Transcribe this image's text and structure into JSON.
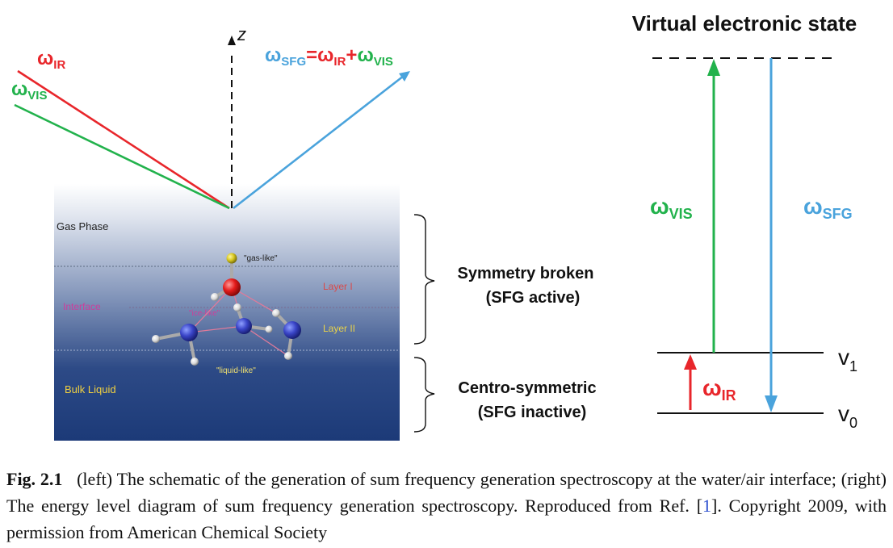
{
  "left_panel": {
    "axis_label": "z",
    "beam_ir": {
      "base": "ω",
      "sub": "IR"
    },
    "beam_vis": {
      "base": "ω",
      "sub": "VIS"
    },
    "beam_sfg": {
      "base": "ω",
      "sub": "SFG",
      "eq1": "=",
      "t1": "ω",
      "t1sub": "IR",
      "plus": "+",
      "t2": "ω",
      "t2sub": "VIS"
    },
    "region_labels": [
      "Gas Phase",
      "Interface",
      "Bulk Liquid"
    ],
    "layer_labels": [
      "Layer I",
      "Layer II"
    ],
    "molecule_labels": [
      "\"gas-like\"",
      "\"ice-like\"",
      "\"liquid-like\""
    ],
    "bracket_top": {
      "line1": "Symmetry broken",
      "line2": "(SFG active)"
    },
    "bracket_bottom": {
      "line1": "Centro-symmetric",
      "line2": "(SFG inactive)"
    }
  },
  "right_panel": {
    "title": "Virtual electronic state",
    "vis": {
      "base": "ω",
      "sub": "VIS"
    },
    "sfg": {
      "base": "ω",
      "sub": "SFG"
    },
    "ir": {
      "base": "ω",
      "sub": "IR"
    },
    "level_v1": {
      "base": "v",
      "sub": "1"
    },
    "level_v0": {
      "base": "v",
      "sub": "0"
    }
  },
  "colors": {
    "ir": "#e8262b",
    "vis": "#22b24c",
    "sfg": "#4aa3dc",
    "water_top": "#e2e7f0",
    "water_bottom": "#1c3a78"
  },
  "caption": {
    "label": "Fig. 2.1",
    "text_before_ref": "(left) The schematic of the generation of sum frequency generation spectroscopy at the water/air interface; (right) The energy level diagram of sum frequency generation spectroscopy. Reproduced from Ref. [",
    "ref": "1",
    "text_after_ref": "]. Copyright 2009, with permission from American Chemical Society"
  }
}
